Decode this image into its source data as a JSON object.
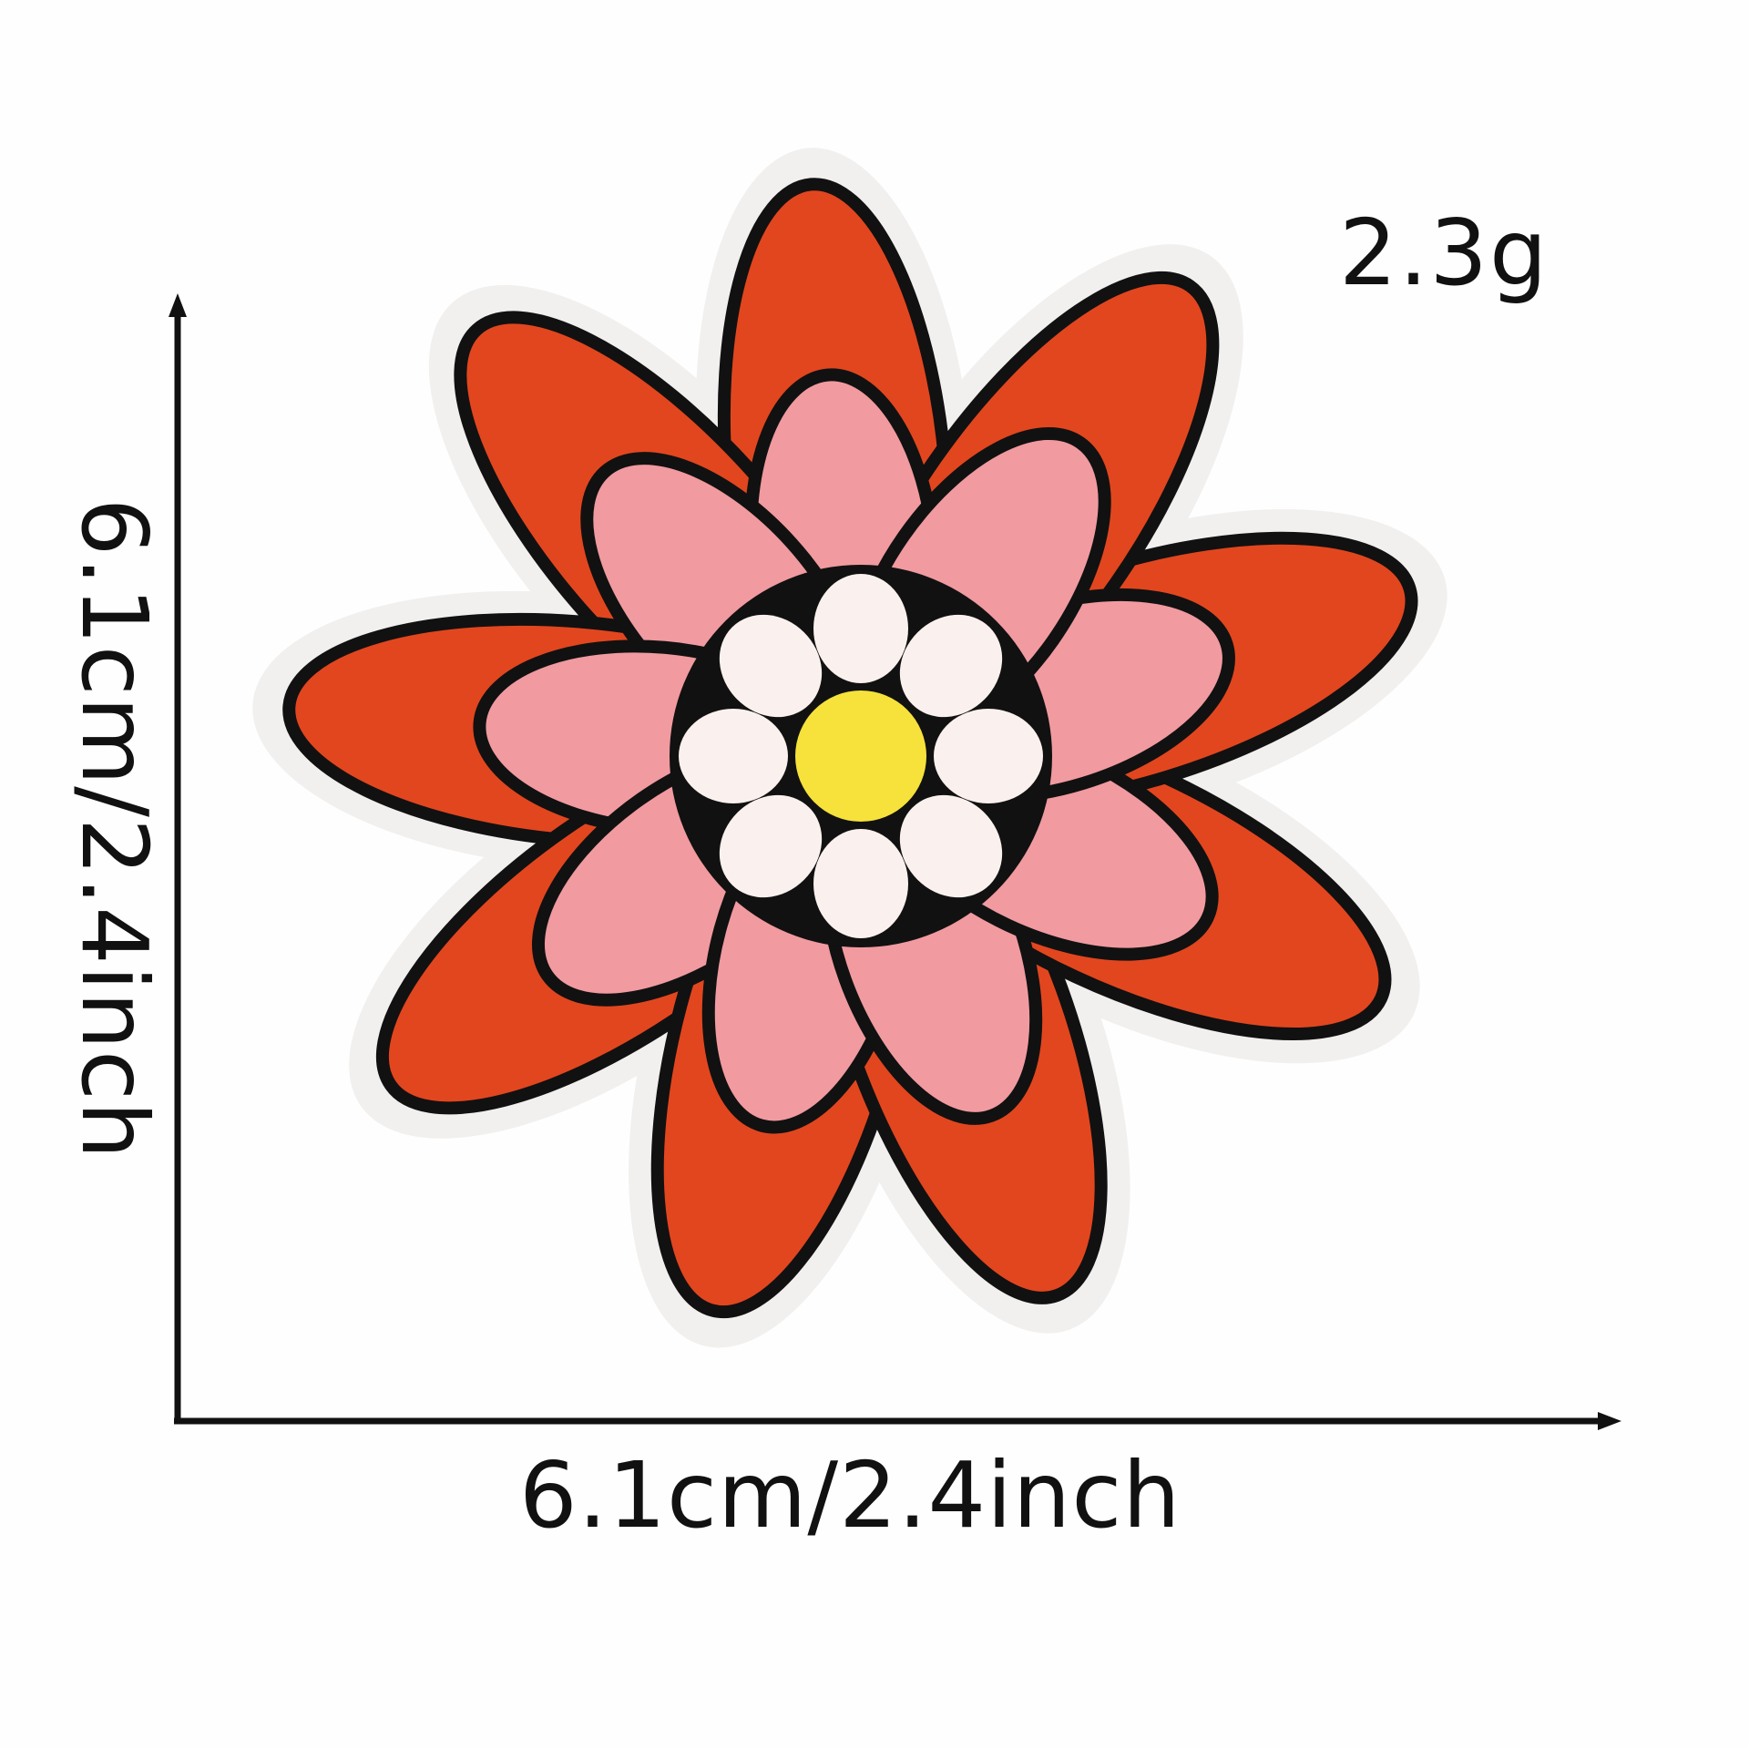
{
  "weight": "2.3g",
  "dimensions": {
    "width_label": "6.1cm/2.4inch",
    "height_label": "6.1cm/2.4inch"
  },
  "colors": {
    "felt_border": "#f3f1ef",
    "outline": "#111111",
    "outer_petal": "#e2461f",
    "inner_petal": "#f19aa0",
    "inner_disc_petal": "#faf1ee",
    "center": "#f6e23a"
  }
}
